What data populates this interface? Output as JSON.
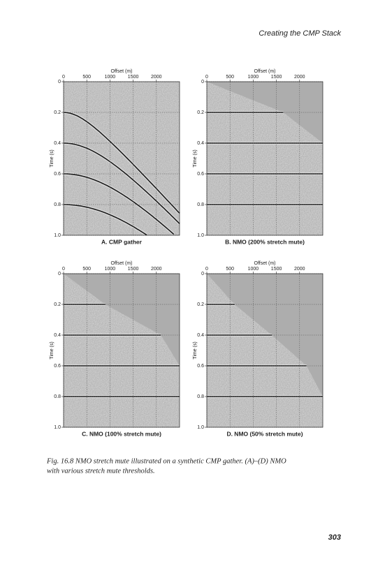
{
  "header": "Creating the CMP Stack",
  "page_number": "303",
  "caption": [
    "Fig. 16.8 NMO stretch mute illustrated on a synthetic CMP gather. (A)–(D) NMO",
    "with various stretch mute thresholds."
  ],
  "panels": [
    {
      "label": "A. CMP gather",
      "type": "gather",
      "x_label": "Offset (m)",
      "y_label": "Time (s)",
      "xlim": [
        0,
        2500
      ],
      "xticks": [
        0,
        500,
        1000,
        1500,
        2000
      ],
      "ylim": [
        0,
        1
      ],
      "yticks": [
        0,
        0.2,
        0.4,
        0.6,
        0.8,
        {
          "value": 1,
          "label": "1.0"
        }
      ],
      "reflections_t0": [
        0.2,
        0.4,
        0.6,
        0.8
      ],
      "velocity": 3000
    },
    {
      "label": "B. NMO (200% stretch mute)",
      "type": "nmo",
      "x_label": "Offset (m)",
      "y_label": "Time (s)",
      "xlim": [
        0,
        2500
      ],
      "xticks": [
        0,
        500,
        1000,
        1500,
        2000
      ],
      "ylim": [
        0,
        1
      ],
      "yticks": [
        0,
        0.2,
        0.4,
        0.6,
        0.8,
        {
          "value": 1,
          "label": "1.0"
        }
      ],
      "reflections_t0": [
        0.2,
        0.4,
        0.6,
        0.8
      ],
      "mute_offsets": [
        1650,
        2500,
        2500,
        2500
      ]
    },
    {
      "label": "C. NMO (100% stretch mute)",
      "type": "nmo",
      "x_label": "Offset (m)",
      "y_label": "Time (s)",
      "xlim": [
        0,
        2500
      ],
      "xticks": [
        0,
        500,
        1000,
        1500,
        2000
      ],
      "ylim": [
        0,
        1
      ],
      "yticks": [
        0,
        0.2,
        0.4,
        0.6,
        0.8,
        {
          "value": 1,
          "label": "1.0"
        }
      ],
      "reflections_t0": [
        0.2,
        0.4,
        0.6,
        0.8
      ],
      "mute_offsets": [
        900,
        2100,
        2500,
        2500
      ]
    },
    {
      "label": "D. NMO (50% stretch mute)",
      "type": "nmo",
      "x_label": "Offset (m)",
      "y_label": "Time (s)",
      "xlim": [
        0,
        2500
      ],
      "xticks": [
        0,
        500,
        1000,
        1500,
        2000
      ],
      "ylim": [
        0,
        1
      ],
      "yticks": [
        0,
        0.2,
        0.4,
        0.6,
        0.8,
        {
          "value": 1,
          "label": "1.0"
        }
      ],
      "reflections_t0": [
        0.2,
        0.4,
        0.6,
        0.8
      ],
      "mute_offsets": [
        600,
        1400,
        2150,
        2500
      ]
    }
  ]
}
